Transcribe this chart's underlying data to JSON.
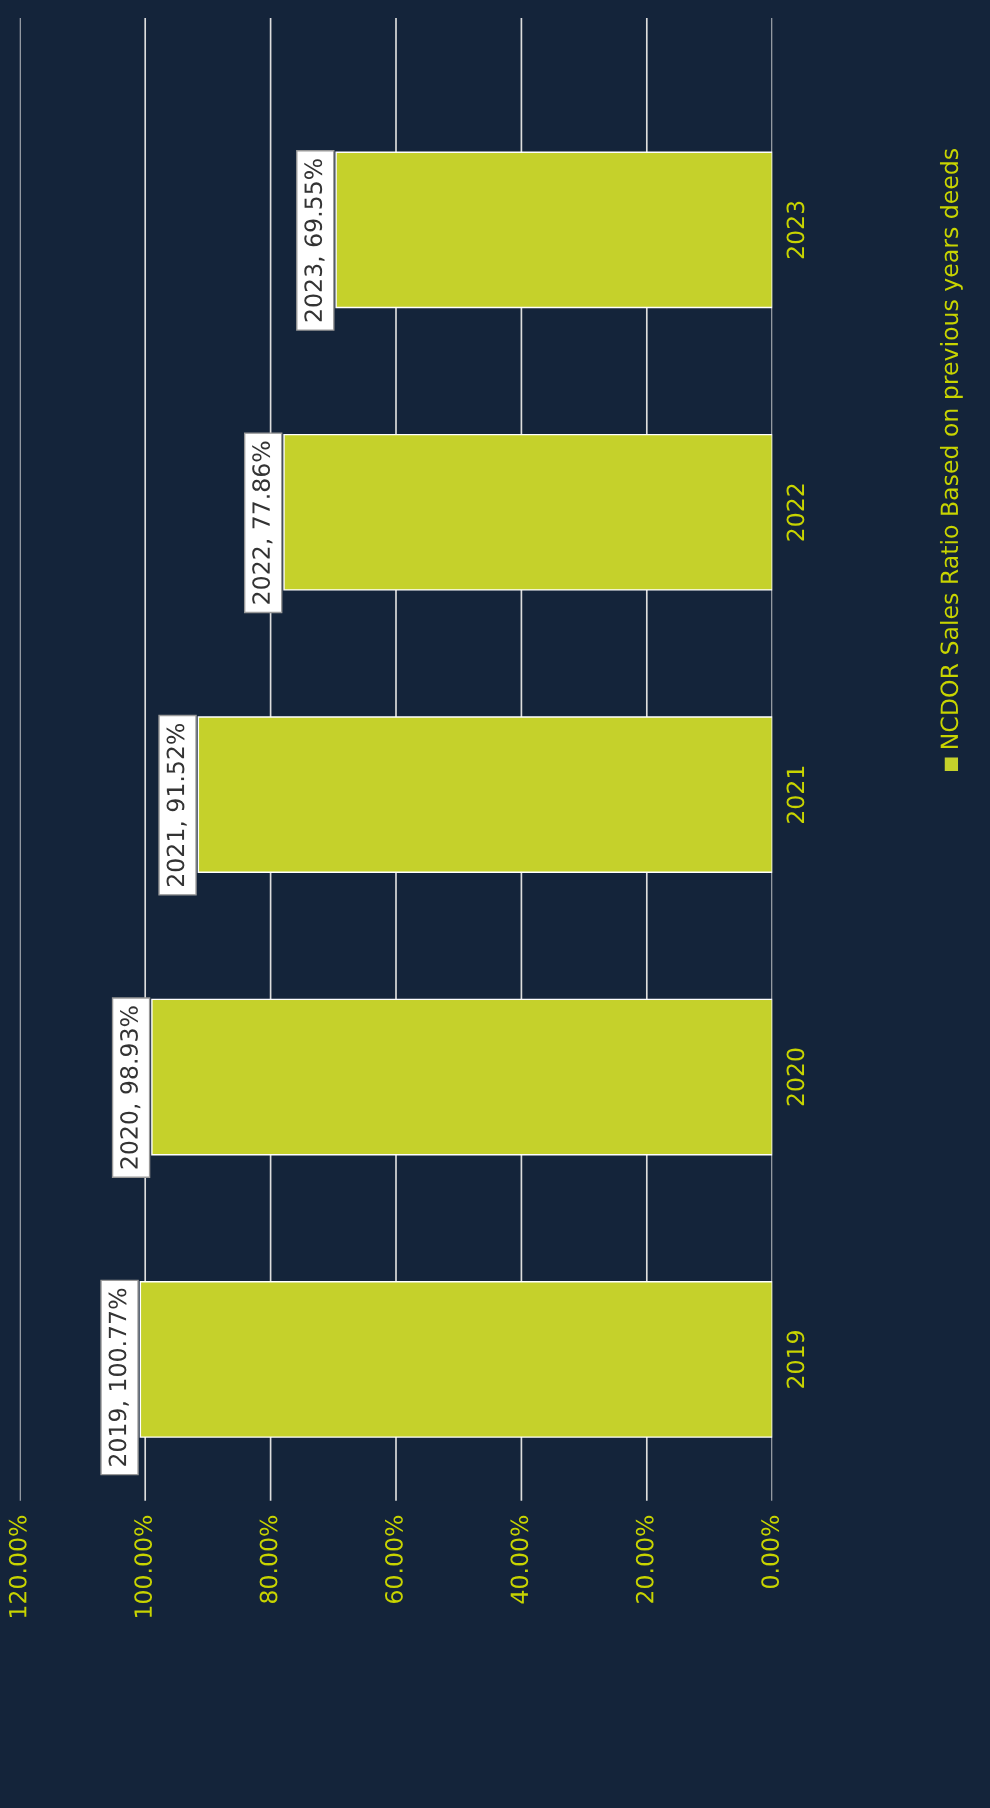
{
  "chart_data": {
    "type": "bar",
    "orientation": "horizontal",
    "categories": [
      "2023",
      "2022",
      "2021",
      "2020",
      "2019"
    ],
    "series": [
      {
        "name": "NCDOR Sales Ratio Based on previous years deeds",
        "color": "#c5d12b",
        "values": [
          69.55,
          77.86,
          91.52,
          98.93,
          100.77
        ],
        "value_labels": [
          "2023, 69.55%",
          "2022, 77.86%",
          "2021, 91.52%",
          "2020, 98.93%",
          "2019, 100.77%"
        ]
      }
    ],
    "xlim": [
      120,
      0
    ],
    "xticks": [
      {
        "value": 0,
        "label": "0.00%"
      },
      {
        "value": 20,
        "label": "20.00%"
      },
      {
        "value": 40,
        "label": "40.00%"
      },
      {
        "value": 60,
        "label": "60.00%"
      },
      {
        "value": 80,
        "label": "80.00%"
      },
      {
        "value": 100,
        "label": "100.00%"
      },
      {
        "value": 120,
        "label": "120.00%"
      }
    ],
    "grid": "x",
    "legend": "right"
  }
}
